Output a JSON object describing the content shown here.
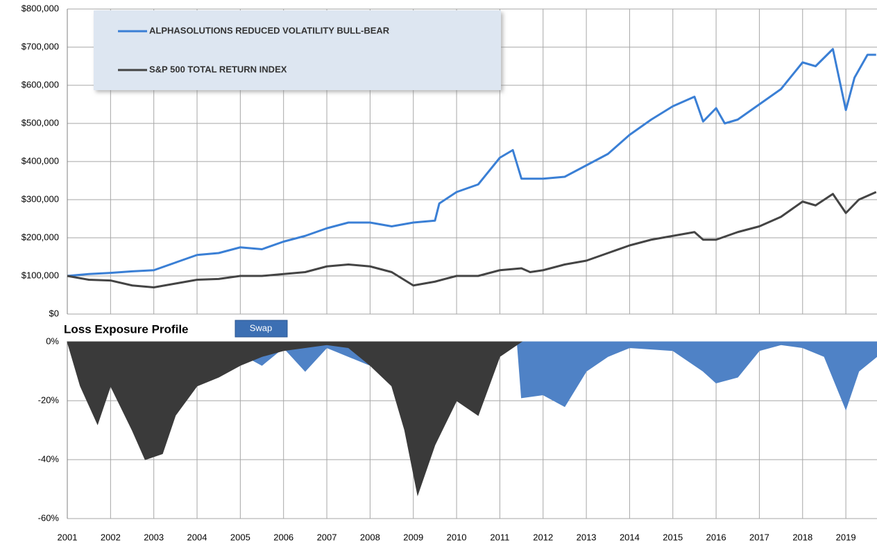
{
  "chart_data": [
    {
      "type": "line",
      "grid": true,
      "legend": "upper left",
      "xlim": [
        2001,
        2019.72
      ],
      "ylim": [
        0,
        800000
      ],
      "yticks": [
        {
          "value": 0,
          "label": "$0"
        },
        {
          "value": 100000,
          "label": "$100,000"
        },
        {
          "value": 200000,
          "label": "$200,000"
        },
        {
          "value": 300000,
          "label": "$300,000"
        },
        {
          "value": 400000,
          "label": "$400,000"
        },
        {
          "value": 500000,
          "label": "$500,000"
        },
        {
          "value": 600000,
          "label": "$600,000"
        },
        {
          "value": 700000,
          "label": "$700,000"
        },
        {
          "value": 800000,
          "label": "$800,000"
        }
      ],
      "series": [
        {
          "name": "ALPHASOLUTIONS REDUCED VOLATILITY BULL-BEAR",
          "color": "#3a7fd5",
          "x": [
            2001,
            2001.5,
            2002,
            2002.5,
            2003,
            2003.5,
            2004,
            2004.5,
            2005,
            2005.5,
            2006,
            2006.5,
            2007,
            2007.5,
            2008,
            2008.5,
            2009,
            2009.5,
            2009.6,
            2010,
            2010.5,
            2011,
            2011.3,
            2011.5,
            2012,
            2012.5,
            2013,
            2013.5,
            2014,
            2014.5,
            2015,
            2015.5,
            2015.7,
            2016,
            2016.2,
            2016.5,
            2017,
            2017.5,
            2018,
            2018.3,
            2018.7,
            2019,
            2019.2,
            2019.5,
            2019.7
          ],
          "values": [
            100000,
            105000,
            108000,
            112000,
            115000,
            135000,
            155000,
            160000,
            175000,
            170000,
            190000,
            205000,
            225000,
            240000,
            240000,
            230000,
            240000,
            245000,
            290000,
            320000,
            340000,
            410000,
            430000,
            355000,
            355000,
            360000,
            390000,
            420000,
            470000,
            510000,
            545000,
            570000,
            505000,
            540000,
            500000,
            510000,
            550000,
            590000,
            660000,
            650000,
            695000,
            535000,
            620000,
            680000,
            680000
          ]
        },
        {
          "name": "S&P 500 TOTAL RETURN INDEX",
          "color": "#444444",
          "x": [
            2001,
            2001.5,
            2002,
            2002.5,
            2003,
            2003.5,
            2004,
            2004.5,
            2005,
            2005.5,
            2006,
            2006.5,
            2007,
            2007.5,
            2008,
            2008.5,
            2009,
            2009.5,
            2010,
            2010.5,
            2011,
            2011.5,
            2011.7,
            2012,
            2012.5,
            2013,
            2013.5,
            2014,
            2014.5,
            2015,
            2015.5,
            2015.7,
            2016,
            2016.5,
            2017,
            2017.5,
            2018,
            2018.3,
            2018.7,
            2019,
            2019.3,
            2019.7
          ],
          "values": [
            100000,
            90000,
            88000,
            75000,
            70000,
            80000,
            90000,
            92000,
            100000,
            100000,
            105000,
            110000,
            125000,
            130000,
            125000,
            110000,
            75000,
            85000,
            100000,
            100000,
            115000,
            120000,
            110000,
            115000,
            130000,
            140000,
            160000,
            180000,
            195000,
            205000,
            215000,
            195000,
            195000,
            215000,
            230000,
            255000,
            295000,
            285000,
            315000,
            265000,
            300000,
            320000
          ]
        }
      ]
    },
    {
      "type": "area",
      "title": "Loss Exposure Profile",
      "grid": true,
      "xlim": [
        2001,
        2019.72
      ],
      "xticks": [
        2001,
        2002,
        2003,
        2004,
        2005,
        2006,
        2007,
        2008,
        2009,
        2010,
        2011,
        2012,
        2013,
        2014,
        2015,
        2016,
        2017,
        2018,
        2019
      ],
      "ylim": [
        -60,
        0
      ],
      "yticks": [
        {
          "value": -60,
          "label": "-60%"
        },
        {
          "value": -40,
          "label": "-40%"
        },
        {
          "value": -20,
          "label": "-20%"
        },
        {
          "value": 0,
          "label": "0%"
        }
      ],
      "series": [
        {
          "color": "#4f82c6",
          "x": [
            2001,
            2002,
            2003,
            2004,
            2005,
            2005.5,
            2006,
            2006.5,
            2007,
            2007.5,
            2008,
            2008.5,
            2009,
            2009.5,
            2010,
            2010.5,
            2011,
            2011.4,
            2011.5,
            2012,
            2012.5,
            2013,
            2013.5,
            2014,
            2015,
            2015.7,
            2016,
            2016.5,
            2017,
            2017.5,
            2018,
            2018.5,
            2019,
            2019.3,
            2019.72
          ],
          "values": [
            0,
            -2,
            -2,
            -3,
            -4,
            -8,
            -2,
            -10,
            -2,
            -5,
            -8,
            -6,
            -8,
            -5,
            -10,
            -8,
            -2,
            0,
            -19,
            -18,
            -22,
            -10,
            -5,
            -2,
            -3,
            -10,
            -14,
            -12,
            -3,
            -1,
            -2,
            -5,
            -23,
            -10,
            -5
          ]
        },
        {
          "color": "#3a3a3a",
          "x": [
            2001,
            2001.3,
            2001.7,
            2002,
            2002.5,
            2002.8,
            2003.2,
            2003.5,
            2004,
            2004.5,
            2005,
            2005.5,
            2006,
            2006.5,
            2007,
            2007.5,
            2008,
            2008.5,
            2008.8,
            2009.1,
            2009.5,
            2010,
            2010.5,
            2011,
            2011.3,
            2011.5
          ],
          "values": [
            0,
            -15,
            -28,
            -15,
            -30,
            -40,
            -38,
            -25,
            -15,
            -12,
            -8,
            -5,
            -3,
            -2,
            -1,
            -2,
            -8,
            -15,
            -30,
            -52,
            -35,
            -20,
            -25,
            -5,
            -2,
            0
          ]
        }
      ]
    }
  ],
  "button": "Swap"
}
